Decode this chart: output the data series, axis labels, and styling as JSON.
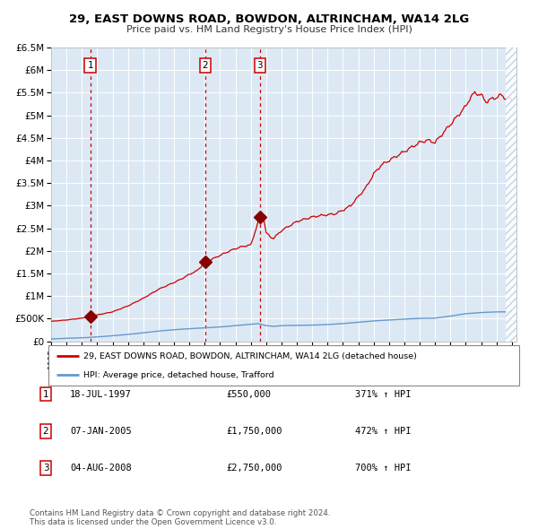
{
  "title": "29, EAST DOWNS ROAD, BOWDON, ALTRINCHAM, WA14 2LG",
  "subtitle": "Price paid vs. HM Land Registry's House Price Index (HPI)",
  "background_color": "#dce9f5",
  "red_line_color": "#cc0000",
  "blue_line_color": "#6699cc",
  "sale_year_floats": [
    1997.55,
    2005.03,
    2008.59
  ],
  "sale_prices": [
    550000,
    1750000,
    2750000
  ],
  "legend_label_red": "29, EAST DOWNS ROAD, BOWDON, ALTRINCHAM, WA14 2LG (detached house)",
  "legend_label_blue": "HPI: Average price, detached house, Trafford",
  "table_entries": [
    {
      "num": 1,
      "date": "18-JUL-1997",
      "price": "£550,000",
      "hpi": "371% ↑ HPI"
    },
    {
      "num": 2,
      "date": "07-JAN-2005",
      "price": "£1,750,000",
      "hpi": "472% ↑ HPI"
    },
    {
      "num": 3,
      "date": "04-AUG-2008",
      "price": "£2,750,000",
      "hpi": "700% ↑ HPI"
    }
  ],
  "footer": "Contains HM Land Registry data © Crown copyright and database right 2024.\nThis data is licensed under the Open Government Licence v3.0.",
  "yticks": [
    0,
    500000,
    1000000,
    1500000,
    2000000,
    2500000,
    3000000,
    3500000,
    4000000,
    4500000,
    5000000,
    5500000,
    6000000,
    6500000
  ],
  "hpi_key_x": [
    1995.0,
    1996.0,
    1997.0,
    1998.0,
    1999.0,
    2000.0,
    2001.0,
    2002.0,
    2003.0,
    2004.0,
    2005.0,
    2006.0,
    2007.0,
    2008.0,
    2008.5,
    2009.0,
    2009.5,
    2010.0,
    2011.0,
    2012.0,
    2013.0,
    2014.0,
    2015.0,
    2016.0,
    2017.0,
    2018.0,
    2019.0,
    2020.0,
    2021.0,
    2022.0,
    2023.0,
    2024.0,
    2025.0
  ],
  "hpi_key_y": [
    50000,
    65000,
    75000,
    95000,
    120000,
    150000,
    185000,
    225000,
    255000,
    278000,
    295000,
    315000,
    345000,
    375000,
    390000,
    345000,
    330000,
    345000,
    350000,
    355000,
    368000,
    390000,
    420000,
    450000,
    470000,
    490000,
    505000,
    510000,
    555000,
    610000,
    635000,
    650000,
    650000
  ],
  "red_key_x": [
    1995.0,
    1996.0,
    1997.0,
    1997.55,
    1998.0,
    1999.0,
    2000.0,
    2001.0,
    2002.0,
    2003.0,
    2003.5,
    2004.0,
    2004.5,
    2005.04,
    2005.5,
    2006.0,
    2006.5,
    2007.0,
    2007.5,
    2008.0,
    2008.59,
    2008.8,
    2009.0,
    2009.3,
    2009.5,
    2010.0,
    2010.5,
    2011.0,
    2011.5,
    2012.0,
    2012.5,
    2013.0,
    2013.5,
    2014.0,
    2014.5,
    2015.0,
    2015.5,
    2016.0,
    2016.5,
    2017.0,
    2017.5,
    2018.0,
    2018.5,
    2019.0,
    2019.5,
    2020.0,
    2020.5,
    2021.0,
    2021.5,
    2022.0,
    2022.3,
    2022.6,
    2023.0,
    2023.3,
    2023.6,
    2024.0,
    2024.3,
    2024.6,
    2025.0
  ],
  "red_key_y": [
    440000,
    470000,
    510000,
    550000,
    580000,
    650000,
    780000,
    950000,
    1150000,
    1300000,
    1380000,
    1480000,
    1560000,
    1750000,
    1820000,
    1900000,
    1980000,
    2050000,
    2100000,
    2130000,
    2750000,
    2800000,
    2400000,
    2300000,
    2280000,
    2450000,
    2550000,
    2650000,
    2700000,
    2750000,
    2780000,
    2800000,
    2820000,
    2900000,
    3000000,
    3200000,
    3400000,
    3700000,
    3900000,
    4000000,
    4100000,
    4200000,
    4300000,
    4400000,
    4450000,
    4400000,
    4600000,
    4800000,
    5000000,
    5200000,
    5400000,
    5500000,
    5450000,
    5300000,
    5350000,
    5400000,
    5450000,
    5380000,
    5350000
  ]
}
